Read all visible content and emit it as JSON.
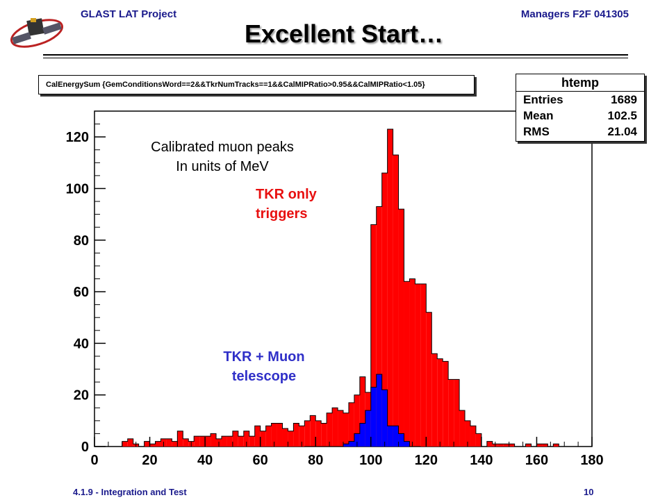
{
  "header": {
    "left": "GLAST LAT Project",
    "right": "Managers F2F 041305"
  },
  "title": "Excellent Start…",
  "footer": {
    "left": "4.1.9 - Integration and Test",
    "right": "10"
  },
  "annotations": {
    "cal_line1": "Calibrated muon peaks",
    "cal_line2": "In units of MeV",
    "tkr_line1": "TKR only",
    "tkr_line2": "triggers",
    "muon_line1": "TKR + Muon",
    "muon_line2": "telescope"
  },
  "colors": {
    "red_fill": "#ff0000",
    "blue_fill": "#0000ff",
    "header_text": "#1a1a8c"
  },
  "chart_data": {
    "type": "bar",
    "selection": "CalEnergySum {GemConditionsWord==2&&TkrNumTracks==1&&CalMIPRatio>0.95&&CalMIPRatio<1.05}",
    "stats": {
      "title": "htemp",
      "entries_label": "Entries",
      "entries": "1689",
      "mean_label": "Mean",
      "mean": "102.5",
      "rms_label": "RMS",
      "rms": "21.04"
    },
    "xlim": [
      0,
      180
    ],
    "ylim": [
      0,
      130
    ],
    "xticks": [
      "0",
      "20",
      "40",
      "60",
      "80",
      "100",
      "120",
      "140",
      "160",
      "180"
    ],
    "yticks": [
      "0",
      "20",
      "40",
      "60",
      "80",
      "100",
      "120"
    ],
    "bin_width": 2,
    "series": [
      {
        "name": "TKR only triggers",
        "color": "#ff0000",
        "x": [
          10,
          12,
          14,
          16,
          18,
          20,
          22,
          24,
          26,
          28,
          30,
          32,
          34,
          36,
          38,
          40,
          42,
          44,
          46,
          48,
          50,
          52,
          54,
          56,
          58,
          60,
          62,
          64,
          66,
          68,
          70,
          72,
          74,
          76,
          78,
          80,
          82,
          84,
          86,
          88,
          90,
          92,
          94,
          96,
          98,
          100,
          102,
          104,
          106,
          108,
          110,
          112,
          114,
          116,
          118,
          120,
          122,
          124,
          126,
          128,
          130,
          132,
          134,
          136,
          138,
          140,
          142,
          144,
          146,
          148,
          150,
          152,
          154,
          156,
          158,
          160,
          162,
          164,
          166,
          168
        ],
        "values": [
          2,
          3,
          1,
          0,
          2,
          1,
          2,
          3,
          3,
          2,
          6,
          3,
          2,
          4,
          4,
          4,
          5,
          3,
          4,
          4,
          6,
          4,
          6,
          4,
          8,
          6,
          8,
          9,
          9,
          7,
          6,
          9,
          8,
          10,
          12,
          10,
          9,
          13,
          15,
          14,
          13,
          17,
          20,
          27,
          21,
          86,
          93,
          106,
          123,
          113,
          92,
          64,
          65,
          63,
          63,
          52,
          36,
          34,
          33,
          26,
          26,
          14,
          10,
          8,
          5,
          0,
          2,
          1,
          1,
          1,
          1,
          0,
          0,
          1,
          0,
          1,
          1,
          0,
          1,
          0
        ]
      },
      {
        "name": "TKR + Muon telescope",
        "color": "#0000ff",
        "x": [
          76,
          78,
          80,
          82,
          84,
          86,
          88,
          90,
          92,
          94,
          96,
          98,
          100,
          102,
          104,
          106,
          108,
          110,
          112,
          114,
          116
        ],
        "values": [
          0,
          0,
          0,
          0,
          0,
          0,
          0,
          1,
          2,
          5,
          9,
          14,
          23,
          28,
          22,
          8,
          8,
          5,
          2,
          0,
          0
        ]
      }
    ]
  }
}
